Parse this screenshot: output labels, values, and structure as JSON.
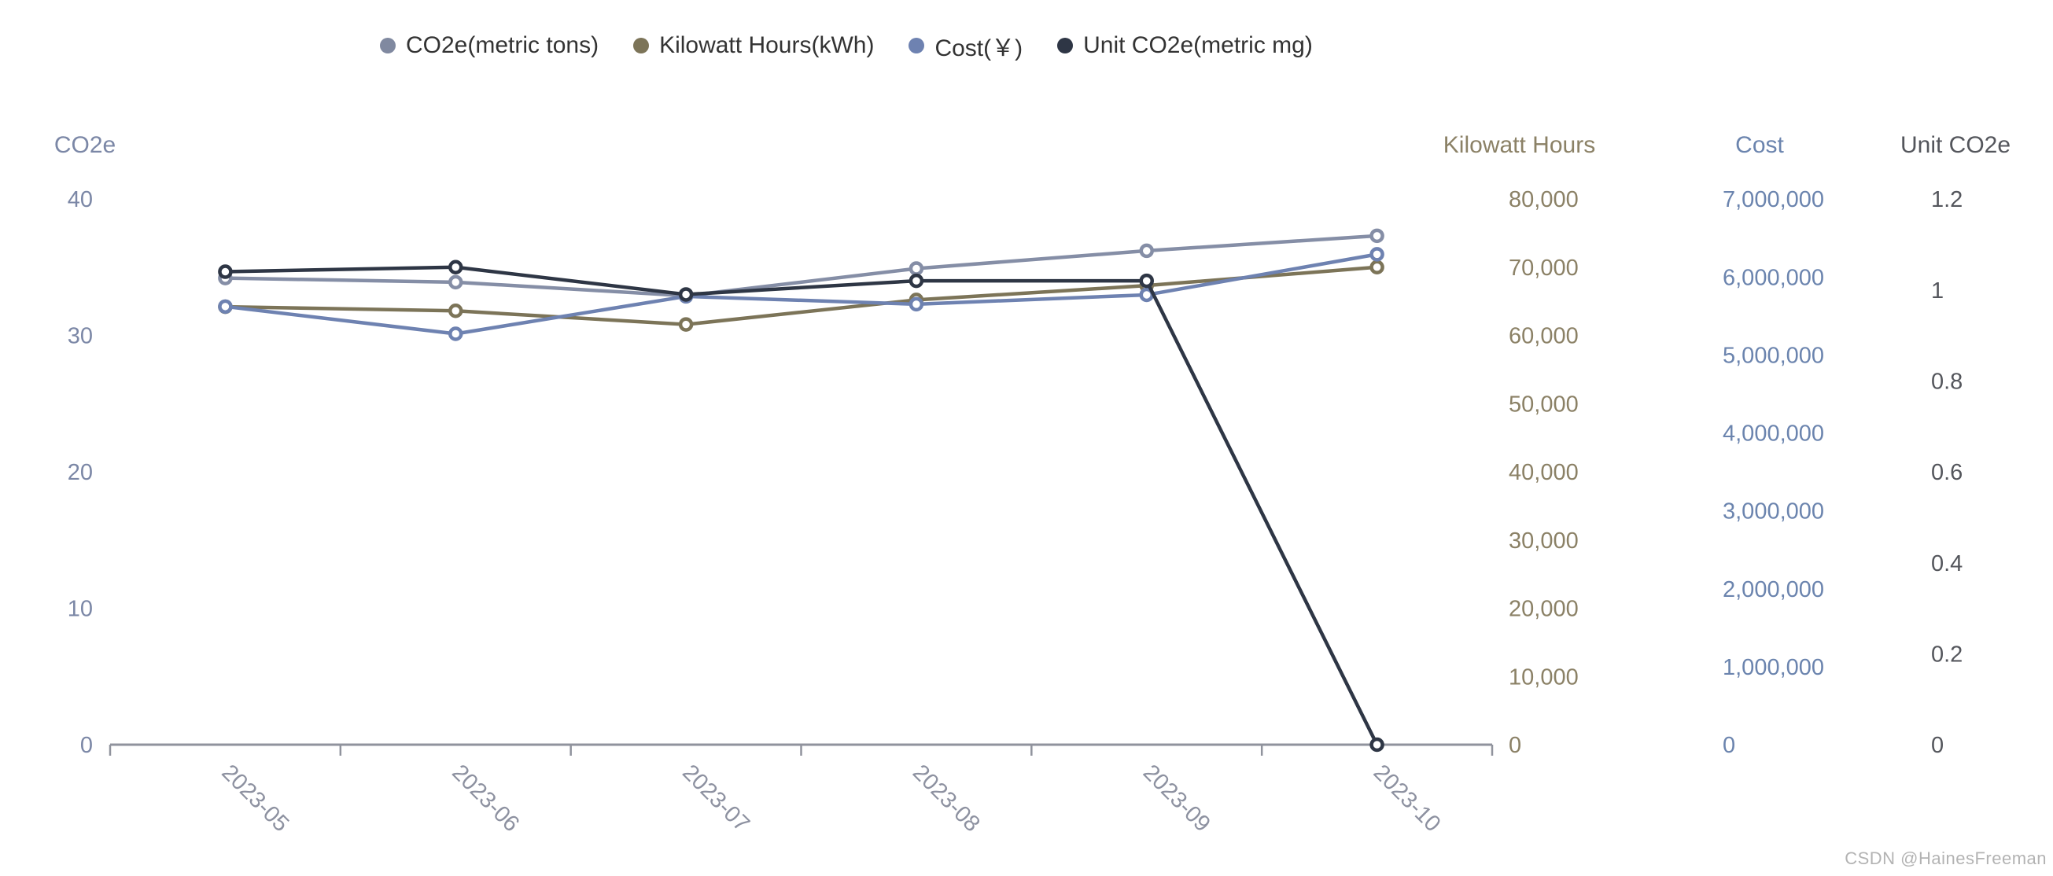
{
  "legend": {
    "items": [
      {
        "label": "CO2e(metric tons)",
        "color": "#8089a0"
      },
      {
        "label": "Kilowatt Hours(kWh)",
        "color": "#7c7458"
      },
      {
        "label": "Cost(￥)",
        "color": "#6e82b1"
      },
      {
        "label": "Unit CO2e(metric mg)",
        "color": "#2e3645"
      }
    ]
  },
  "watermark": "CSDN @HainesFreeman",
  "chart_data": {
    "type": "line",
    "title": "",
    "legend_position": "top",
    "grid": false,
    "categories": [
      "2023-05",
      "2023-06",
      "2023-07",
      "2023-08",
      "2023-09",
      "2023-10"
    ],
    "axes": {
      "co2e": {
        "title": "CO2e",
        "side": "left",
        "color": "#7b87a6",
        "min": 0,
        "max": 40,
        "ticks": [
          {
            "value": 40,
            "label": "40"
          },
          {
            "value": 30,
            "label": "30"
          },
          {
            "value": 20,
            "label": "20"
          },
          {
            "value": 10,
            "label": "10"
          },
          {
            "value": 0,
            "label": "0"
          }
        ]
      },
      "kwh": {
        "title": "Kilowatt Hours",
        "side": "right",
        "color": "#8b8166",
        "min": 0,
        "max": 80000,
        "ticks": [
          {
            "value": 80000,
            "label": "80,000"
          },
          {
            "value": 70000,
            "label": "70,000"
          },
          {
            "value": 60000,
            "label": "60,000"
          },
          {
            "value": 50000,
            "label": "50,000"
          },
          {
            "value": 40000,
            "label": "40,000"
          },
          {
            "value": 30000,
            "label": "30,000"
          },
          {
            "value": 20000,
            "label": "20,000"
          },
          {
            "value": 10000,
            "label": "10,000"
          },
          {
            "value": 0,
            "label": "0"
          }
        ]
      },
      "cost": {
        "title": "Cost",
        "side": "right",
        "color": "#6b84ae",
        "min": 0,
        "max": 7000000,
        "ticks": [
          {
            "value": 7000000,
            "label": "7,000,000"
          },
          {
            "value": 6000000,
            "label": "6,000,000"
          },
          {
            "value": 5000000,
            "label": "5,000,000"
          },
          {
            "value": 4000000,
            "label": "4,000,000"
          },
          {
            "value": 3000000,
            "label": "3,000,000"
          },
          {
            "value": 2000000,
            "label": "2,000,000"
          },
          {
            "value": 1000000,
            "label": "1,000,000"
          },
          {
            "value": 0,
            "label": "0"
          }
        ]
      },
      "unit": {
        "title": "Unit CO2e",
        "side": "right",
        "color": "#54565c",
        "min": 0,
        "max": 1.2,
        "ticks": [
          {
            "value": 1.2,
            "label": "1.2"
          },
          {
            "value": 1,
            "label": "1"
          },
          {
            "value": 0.8,
            "label": "0.8"
          },
          {
            "value": 0.6,
            "label": "0.6"
          },
          {
            "value": 0.4,
            "label": "0.4"
          },
          {
            "value": 0.2,
            "label": "0.2"
          },
          {
            "value": 0,
            "label": "0"
          }
        ]
      }
    },
    "series": [
      {
        "name": "CO2e(metric tons)",
        "axis": "co2e",
        "color": "#858ea6",
        "values": [
          34.2,
          33.9,
          32.9,
          34.9,
          36.2,
          37.3
        ]
      },
      {
        "name": "Kilowatt Hours(kWh)",
        "axis": "kwh",
        "color": "#7c7458",
        "values": [
          64200,
          63600,
          61600,
          65200,
          67300,
          70000
        ]
      },
      {
        "name": "Cost(￥)",
        "axis": "cost",
        "color": "#6e82b1",
        "values": [
          5620000,
          5270000,
          5750000,
          5650000,
          5770000,
          6290000
        ]
      },
      {
        "name": "Unit CO2e(metric mg)",
        "axis": "unit",
        "color": "#2e3645",
        "values": [
          1.04,
          1.05,
          0.99,
          1.02,
          1.02,
          0
        ]
      }
    ],
    "x_label_color": "#8d91a0",
    "axis_line_color": "#90939d"
  }
}
